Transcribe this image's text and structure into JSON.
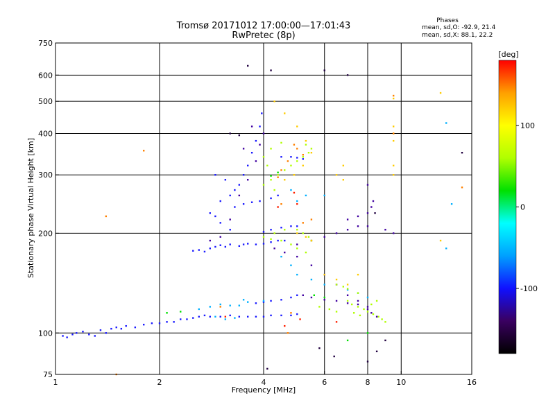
{
  "header": {
    "title_line1": "Tromsø 20171012 17:00:00—17:01:43",
    "title_line2": "RwPretec (8p)",
    "phases_title": "Phases",
    "phases_o": "mean, sd,O:  -92.9, 21.4",
    "phases_x": "mean, sd,X:  88.1, 22.2"
  },
  "chart_data": {
    "type": "scatter",
    "title": "Tromsø 20171012 17:00:00—17:01:43",
    "subtitle": "RwPretec (8p)",
    "xlabel": "Frequency [MHz]",
    "ylabel": "Stationary phase Virtual Height [km]",
    "xscale": "log",
    "yscale": "log",
    "xlim": [
      1,
      16
    ],
    "ylim": [
      75,
      750
    ],
    "x_ticks": [
      1,
      2,
      4,
      6,
      8,
      10,
      16
    ],
    "y_ticks": [
      75,
      100,
      200,
      300,
      400,
      500,
      600,
      750
    ],
    "grid_x": [
      2,
      4,
      6,
      8,
      10
    ],
    "grid_y": [
      100,
      200,
      300,
      400,
      500,
      600
    ],
    "colorbar": {
      "label": "[deg]",
      "min": -180,
      "max": 180,
      "ticks": [
        100,
        0,
        -100
      ],
      "colors": [
        "#000000",
        "#3a0060",
        "#1010ff",
        "#00a0ff",
        "#00ffff",
        "#00e000",
        "#b0ff00",
        "#ffff00",
        "#ffa000",
        "#ff0000"
      ]
    },
    "series": [
      {
        "color": "#1a1aff",
        "points": [
          [
            1.05,
            98
          ],
          [
            1.08,
            97
          ],
          [
            1.12,
            99
          ],
          [
            1.15,
            100
          ],
          [
            1.2,
            101
          ],
          [
            1.25,
            99
          ],
          [
            1.3,
            98
          ],
          [
            1.35,
            102
          ],
          [
            1.4,
            100
          ],
          [
            1.45,
            103
          ],
          [
            1.5,
            104
          ],
          [
            1.55,
            103
          ],
          [
            1.6,
            105
          ],
          [
            1.7,
            104
          ],
          [
            1.8,
            106
          ],
          [
            1.9,
            107
          ],
          [
            2.0,
            107
          ],
          [
            2.1,
            108
          ],
          [
            2.2,
            108
          ],
          [
            2.3,
            110
          ],
          [
            2.4,
            110
          ],
          [
            2.5,
            111
          ],
          [
            2.6,
            112
          ],
          [
            2.7,
            113
          ],
          [
            2.8,
            112
          ],
          [
            3.0,
            112
          ],
          [
            3.2,
            113
          ],
          [
            3.4,
            112
          ],
          [
            3.6,
            112
          ],
          [
            3.8,
            112
          ],
          [
            4.0,
            112
          ],
          [
            4.2,
            113
          ],
          [
            4.5,
            113
          ],
          [
            4.8,
            113
          ],
          [
            5.0,
            114
          ],
          [
            2.5,
            177
          ],
          [
            2.6,
            178
          ],
          [
            2.7,
            176
          ],
          [
            2.8,
            180
          ],
          [
            2.9,
            182
          ],
          [
            3.0,
            184
          ],
          [
            3.1,
            182
          ],
          [
            3.2,
            185
          ],
          [
            3.4,
            183
          ],
          [
            3.5,
            185
          ],
          [
            3.6,
            186
          ],
          [
            3.8,
            185
          ],
          [
            4.0,
            186
          ],
          [
            4.2,
            188
          ],
          [
            4.4,
            190
          ],
          [
            4.6,
            190
          ],
          [
            3.8,
            123
          ],
          [
            4.0,
            124
          ],
          [
            4.2,
            125
          ],
          [
            4.5,
            126
          ],
          [
            4.8,
            128
          ],
          [
            5.0,
            130
          ],
          [
            2.8,
            230
          ],
          [
            3.0,
            250
          ],
          [
            3.2,
            260
          ],
          [
            3.4,
            280
          ],
          [
            3.5,
            300
          ],
          [
            3.6,
            320
          ],
          [
            3.7,
            350
          ],
          [
            3.8,
            380
          ],
          [
            3.9,
            420
          ],
          [
            3.95,
            460
          ],
          [
            3.3,
            240
          ],
          [
            3.5,
            245
          ],
          [
            3.7,
            248
          ],
          [
            3.9,
            250
          ],
          [
            4.2,
            255
          ],
          [
            4.4,
            260
          ],
          [
            4.0,
            202
          ],
          [
            4.2,
            205
          ],
          [
            4.5,
            208
          ],
          [
            4.8,
            210
          ],
          [
            5.0,
            210
          ],
          [
            4.5,
            340
          ],
          [
            4.8,
            340
          ],
          [
            5.0,
            338
          ],
          [
            5.2,
            335
          ],
          [
            3.2,
            205
          ],
          [
            3.0,
            215
          ],
          [
            2.9,
            225
          ],
          [
            3.3,
            270
          ],
          [
            3.1,
            290
          ],
          [
            2.9,
            300
          ]
        ]
      },
      {
        "color": "#4000a0",
        "points": [
          [
            2.8,
            190
          ],
          [
            3.0,
            195
          ],
          [
            3.2,
            220
          ],
          [
            3.4,
            260
          ],
          [
            3.6,
            290
          ],
          [
            3.8,
            330
          ],
          [
            3.9,
            370
          ],
          [
            4.0,
            400
          ],
          [
            3.7,
            420
          ],
          [
            3.5,
            360
          ],
          [
            4.3,
            180
          ],
          [
            4.6,
            175
          ],
          [
            5.0,
            170
          ],
          [
            5.5,
            160
          ],
          [
            6.0,
            150
          ],
          [
            6.5,
            140
          ],
          [
            7.0,
            130
          ],
          [
            7.5,
            125
          ],
          [
            8.0,
            120
          ],
          [
            5.2,
            130
          ],
          [
            5.5,
            128
          ],
          [
            6.0,
            126
          ],
          [
            6.5,
            125
          ],
          [
            7.0,
            123
          ],
          [
            7.5,
            122
          ],
          [
            8.0,
            118
          ],
          [
            8.2,
            115
          ],
          [
            8.5,
            112
          ],
          [
            5.0,
            185
          ],
          [
            5.5,
            190
          ],
          [
            6.0,
            195
          ],
          [
            6.5,
            200
          ],
          [
            7.0,
            205
          ],
          [
            7.5,
            210
          ],
          [
            8.0,
            210
          ],
          [
            9.0,
            205
          ],
          [
            9.5,
            200
          ],
          [
            7.0,
            220
          ],
          [
            7.5,
            225
          ],
          [
            8.0,
            230
          ],
          [
            8.2,
            240
          ],
          [
            8.0,
            280
          ],
          [
            8.3,
            250
          ]
        ]
      },
      {
        "color": "#00b0ff",
        "points": [
          [
            2.6,
            118
          ],
          [
            2.8,
            120
          ],
          [
            3.0,
            122
          ],
          [
            3.2,
            121
          ],
          [
            3.4,
            121
          ],
          [
            2.9,
            112
          ],
          [
            3.1,
            110
          ],
          [
            3.3,
            111
          ],
          [
            4.5,
            170
          ],
          [
            4.8,
            160
          ],
          [
            5.0,
            150
          ],
          [
            5.5,
            145
          ],
          [
            6.0,
            140
          ],
          [
            7.0,
            135
          ],
          [
            7.5,
            132
          ],
          [
            8.0,
            128
          ],
          [
            5.0,
            250
          ],
          [
            5.3,
            260
          ],
          [
            4.8,
            270
          ],
          [
            6.0,
            260
          ],
          [
            3.5,
            126
          ],
          [
            3.6,
            124
          ],
          [
            4.0,
            125
          ],
          [
            14.0,
            245
          ],
          [
            13.5,
            180
          ],
          [
            13.5,
            430
          ]
        ]
      },
      {
        "color": "#b0ff00",
        "points": [
          [
            4.0,
            195
          ],
          [
            4.3,
            200
          ],
          [
            4.6,
            205
          ],
          [
            5.0,
            205
          ],
          [
            5.2,
            200
          ],
          [
            5.4,
            195
          ],
          [
            5.5,
            190
          ],
          [
            4.8,
            185
          ],
          [
            4.5,
            190
          ],
          [
            4.2,
            192
          ],
          [
            4.0,
            280
          ],
          [
            4.2,
            290
          ],
          [
            4.4,
            300
          ],
          [
            4.6,
            310
          ],
          [
            4.8,
            320
          ],
          [
            5.0,
            330
          ],
          [
            5.2,
            340
          ],
          [
            5.4,
            350
          ],
          [
            5.5,
            360
          ],
          [
            5.3,
            370
          ],
          [
            4.5,
            375
          ],
          [
            4.2,
            360
          ],
          [
            4.0,
            340
          ],
          [
            4.1,
            320
          ],
          [
            4.3,
            270
          ],
          [
            7.0,
            125
          ],
          [
            7.2,
            122
          ],
          [
            7.5,
            120
          ],
          [
            7.8,
            118
          ],
          [
            8.0,
            116
          ],
          [
            8.3,
            114
          ],
          [
            8.6,
            112
          ],
          [
            8.8,
            110
          ],
          [
            9.0,
            108
          ],
          [
            6.5,
            140
          ],
          [
            6.8,
            138
          ],
          [
            7.0,
            136
          ],
          [
            7.5,
            132
          ],
          [
            7.3,
            115
          ],
          [
            7.6,
            113
          ],
          [
            8.2,
            122
          ],
          [
            8.5,
            125
          ],
          [
            5.8,
            120
          ],
          [
            6.2,
            118
          ],
          [
            6.5,
            116
          ],
          [
            5.0,
            180
          ],
          [
            5.3,
            175
          ]
        ]
      },
      {
        "color": "#ffcc00",
        "points": [
          [
            4.3,
            500
          ],
          [
            4.6,
            460
          ],
          [
            5.0,
            420
          ],
          [
            5.3,
            380
          ],
          [
            5.5,
            350
          ],
          [
            5.2,
            320
          ],
          [
            4.9,
            300
          ],
          [
            4.6,
            290
          ],
          [
            5.0,
            200
          ],
          [
            5.3,
            195
          ],
          [
            5.5,
            190
          ],
          [
            6.0,
            150
          ],
          [
            6.5,
            145
          ],
          [
            7.0,
            140
          ],
          [
            7.5,
            150
          ],
          [
            9.5,
            510
          ],
          [
            9.5,
            420
          ],
          [
            9.5,
            400
          ],
          [
            9.5,
            380
          ],
          [
            9.5,
            320
          ],
          [
            9.5,
            300
          ],
          [
            13.0,
            530
          ],
          [
            13.0,
            190
          ],
          [
            6.8,
            320
          ],
          [
            6.8,
            290
          ],
          [
            6.5,
            300
          ]
        ]
      },
      {
        "color": "#ff8000",
        "points": [
          [
            1.8,
            355
          ],
          [
            1.4,
            225
          ],
          [
            1.5,
            75
          ],
          [
            4.9,
            370
          ],
          [
            5.0,
            360
          ],
          [
            5.2,
            345
          ],
          [
            4.7,
            330
          ],
          [
            4.5,
            310
          ],
          [
            4.4,
            295
          ],
          [
            5.5,
            220
          ],
          [
            5.2,
            215
          ],
          [
            4.8,
            115
          ],
          [
            4.7,
            100
          ],
          [
            9.5,
            400
          ],
          [
            9.5,
            520
          ],
          [
            15.0,
            275
          ],
          [
            3.0,
            120
          ],
          [
            4.5,
            245
          ]
        ]
      },
      {
        "color": "#ff2000",
        "points": [
          [
            4.6,
            105
          ],
          [
            5.1,
            110
          ],
          [
            4.9,
            265
          ],
          [
            5.0,
            245
          ],
          [
            4.4,
            240
          ],
          [
            6.5,
            108
          ],
          [
            3.1,
            112
          ]
        ]
      },
      {
        "color": "#00e000",
        "points": [
          [
            2.1,
            115
          ],
          [
            2.3,
            116
          ],
          [
            4.2,
            298
          ],
          [
            4.4,
            305
          ],
          [
            5.6,
            130
          ],
          [
            6.0,
            128
          ],
          [
            7.0,
            95
          ],
          [
            8.0,
            100
          ]
        ]
      },
      {
        "color": "#200040",
        "points": [
          [
            3.6,
            640
          ],
          [
            6.0,
            620
          ],
          [
            7.0,
            600
          ],
          [
            4.2,
            620
          ],
          [
            3.2,
            400
          ],
          [
            3.4,
            395
          ],
          [
            15.0,
            350
          ],
          [
            8.4,
            230
          ],
          [
            5.8,
            90
          ],
          [
            6.4,
            85
          ],
          [
            8.0,
            82
          ],
          [
            8.5,
            88
          ],
          [
            9.0,
            95
          ],
          [
            4.1,
            78
          ]
        ]
      }
    ]
  }
}
